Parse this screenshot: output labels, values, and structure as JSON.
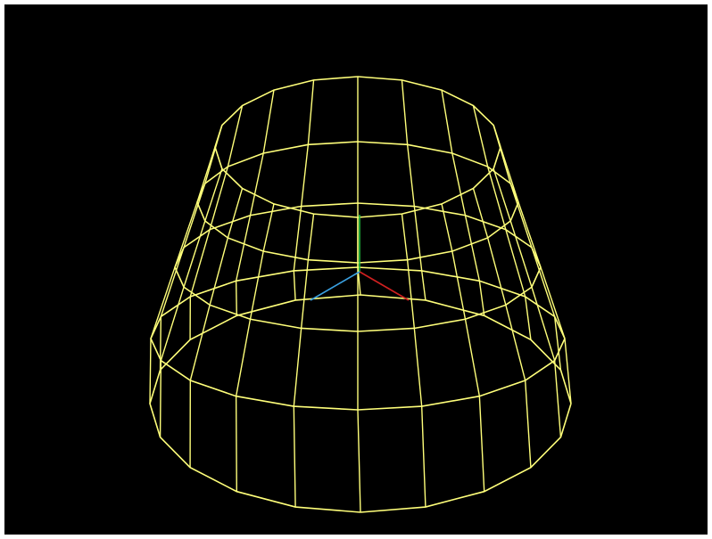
{
  "scene": {
    "object": "truncated-cone-wireframe",
    "wire_color": "#ffff7a",
    "background_color": "#000000",
    "frame_color": "#ffffff",
    "axes": {
      "x_color": "#d02020",
      "y_color": "#20c040",
      "z_color": "#3aa0e0"
    }
  }
}
